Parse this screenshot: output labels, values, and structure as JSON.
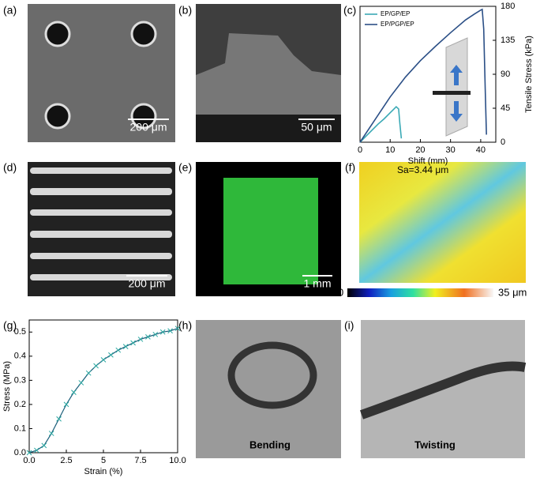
{
  "panels": {
    "a": {
      "label": "(a)",
      "scale_bar": "200 μm"
    },
    "b": {
      "label": "(b)",
      "scale_bar": "50 μm"
    },
    "c": {
      "label": "(c)"
    },
    "d": {
      "label": "(d)",
      "scale_bar": "200 μm"
    },
    "e": {
      "label": "(e)",
      "scale_bar": "1 mm"
    },
    "f": {
      "label": "(f)",
      "annotation": "Sa=3.44 μm",
      "colorbar_min": "0",
      "colorbar_max": "35 μm"
    },
    "g": {
      "label": "(g)"
    },
    "h": {
      "label": "(h)",
      "caption": "Bending"
    },
    "i": {
      "label": "(i)",
      "caption": "Twisting"
    }
  },
  "chart_data": [
    {
      "type": "line",
      "x_label": "Shift (mm)",
      "y2_label": "Tensile Stress (kPa)",
      "xlim": [
        0,
        45
      ],
      "xticks": [
        0,
        10,
        20,
        30,
        40
      ],
      "y2lim": [
        0,
        180
      ],
      "y2ticks": [
        0,
        45,
        90,
        135,
        180
      ],
      "legend": "upper left",
      "series": [
        {
          "name": "EP/GP/EP",
          "color": "#3aa9b5",
          "axis": "y2",
          "x": [
            0,
            2,
            4,
            6,
            8,
            10,
            11,
            12,
            12.8,
            13.2,
            13.7
          ],
          "values": [
            0,
            8,
            16,
            24,
            31,
            39,
            43,
            47,
            44,
            25,
            5
          ]
        },
        {
          "name": "EP/PGP/EP",
          "color": "#2b4f86",
          "axis": "y2",
          "x": [
            0,
            5,
            10,
            15,
            20,
            25,
            30,
            35,
            38,
            40,
            40.5,
            41,
            41.5,
            41.9
          ],
          "values": [
            0,
            30,
            60,
            86,
            108,
            127,
            145,
            162,
            170,
            175,
            176,
            150,
            70,
            10
          ]
        }
      ]
    },
    {
      "type": "line",
      "x_label": "Strain (%)",
      "y_label": "Stress (MPa)",
      "xlim": [
        0,
        10
      ],
      "xticks": [
        {
          "value": 0,
          "label": "0.0"
        },
        2.5,
        5,
        7.5,
        {
          "value": 10,
          "label": "10.0"
        }
      ],
      "ylim": [
        0,
        0.55
      ],
      "yticks": [
        {
          "value": 0,
          "label": "0.0"
        },
        0.1,
        0.2,
        0.3,
        0.4,
        0.5
      ],
      "color": "#2aa6a0",
      "x": [
        0,
        0.5,
        1,
        1.5,
        2,
        2.5,
        3,
        3.5,
        4,
        4.5,
        5,
        5.5,
        6,
        6.5,
        7,
        7.5,
        8,
        8.5,
        9,
        9.5,
        10
      ],
      "values": [
        0,
        0.01,
        0.03,
        0.08,
        0.14,
        0.2,
        0.25,
        0.29,
        0.33,
        0.36,
        0.385,
        0.405,
        0.425,
        0.44,
        0.455,
        0.47,
        0.48,
        0.49,
        0.5,
        0.505,
        0.515
      ]
    }
  ]
}
